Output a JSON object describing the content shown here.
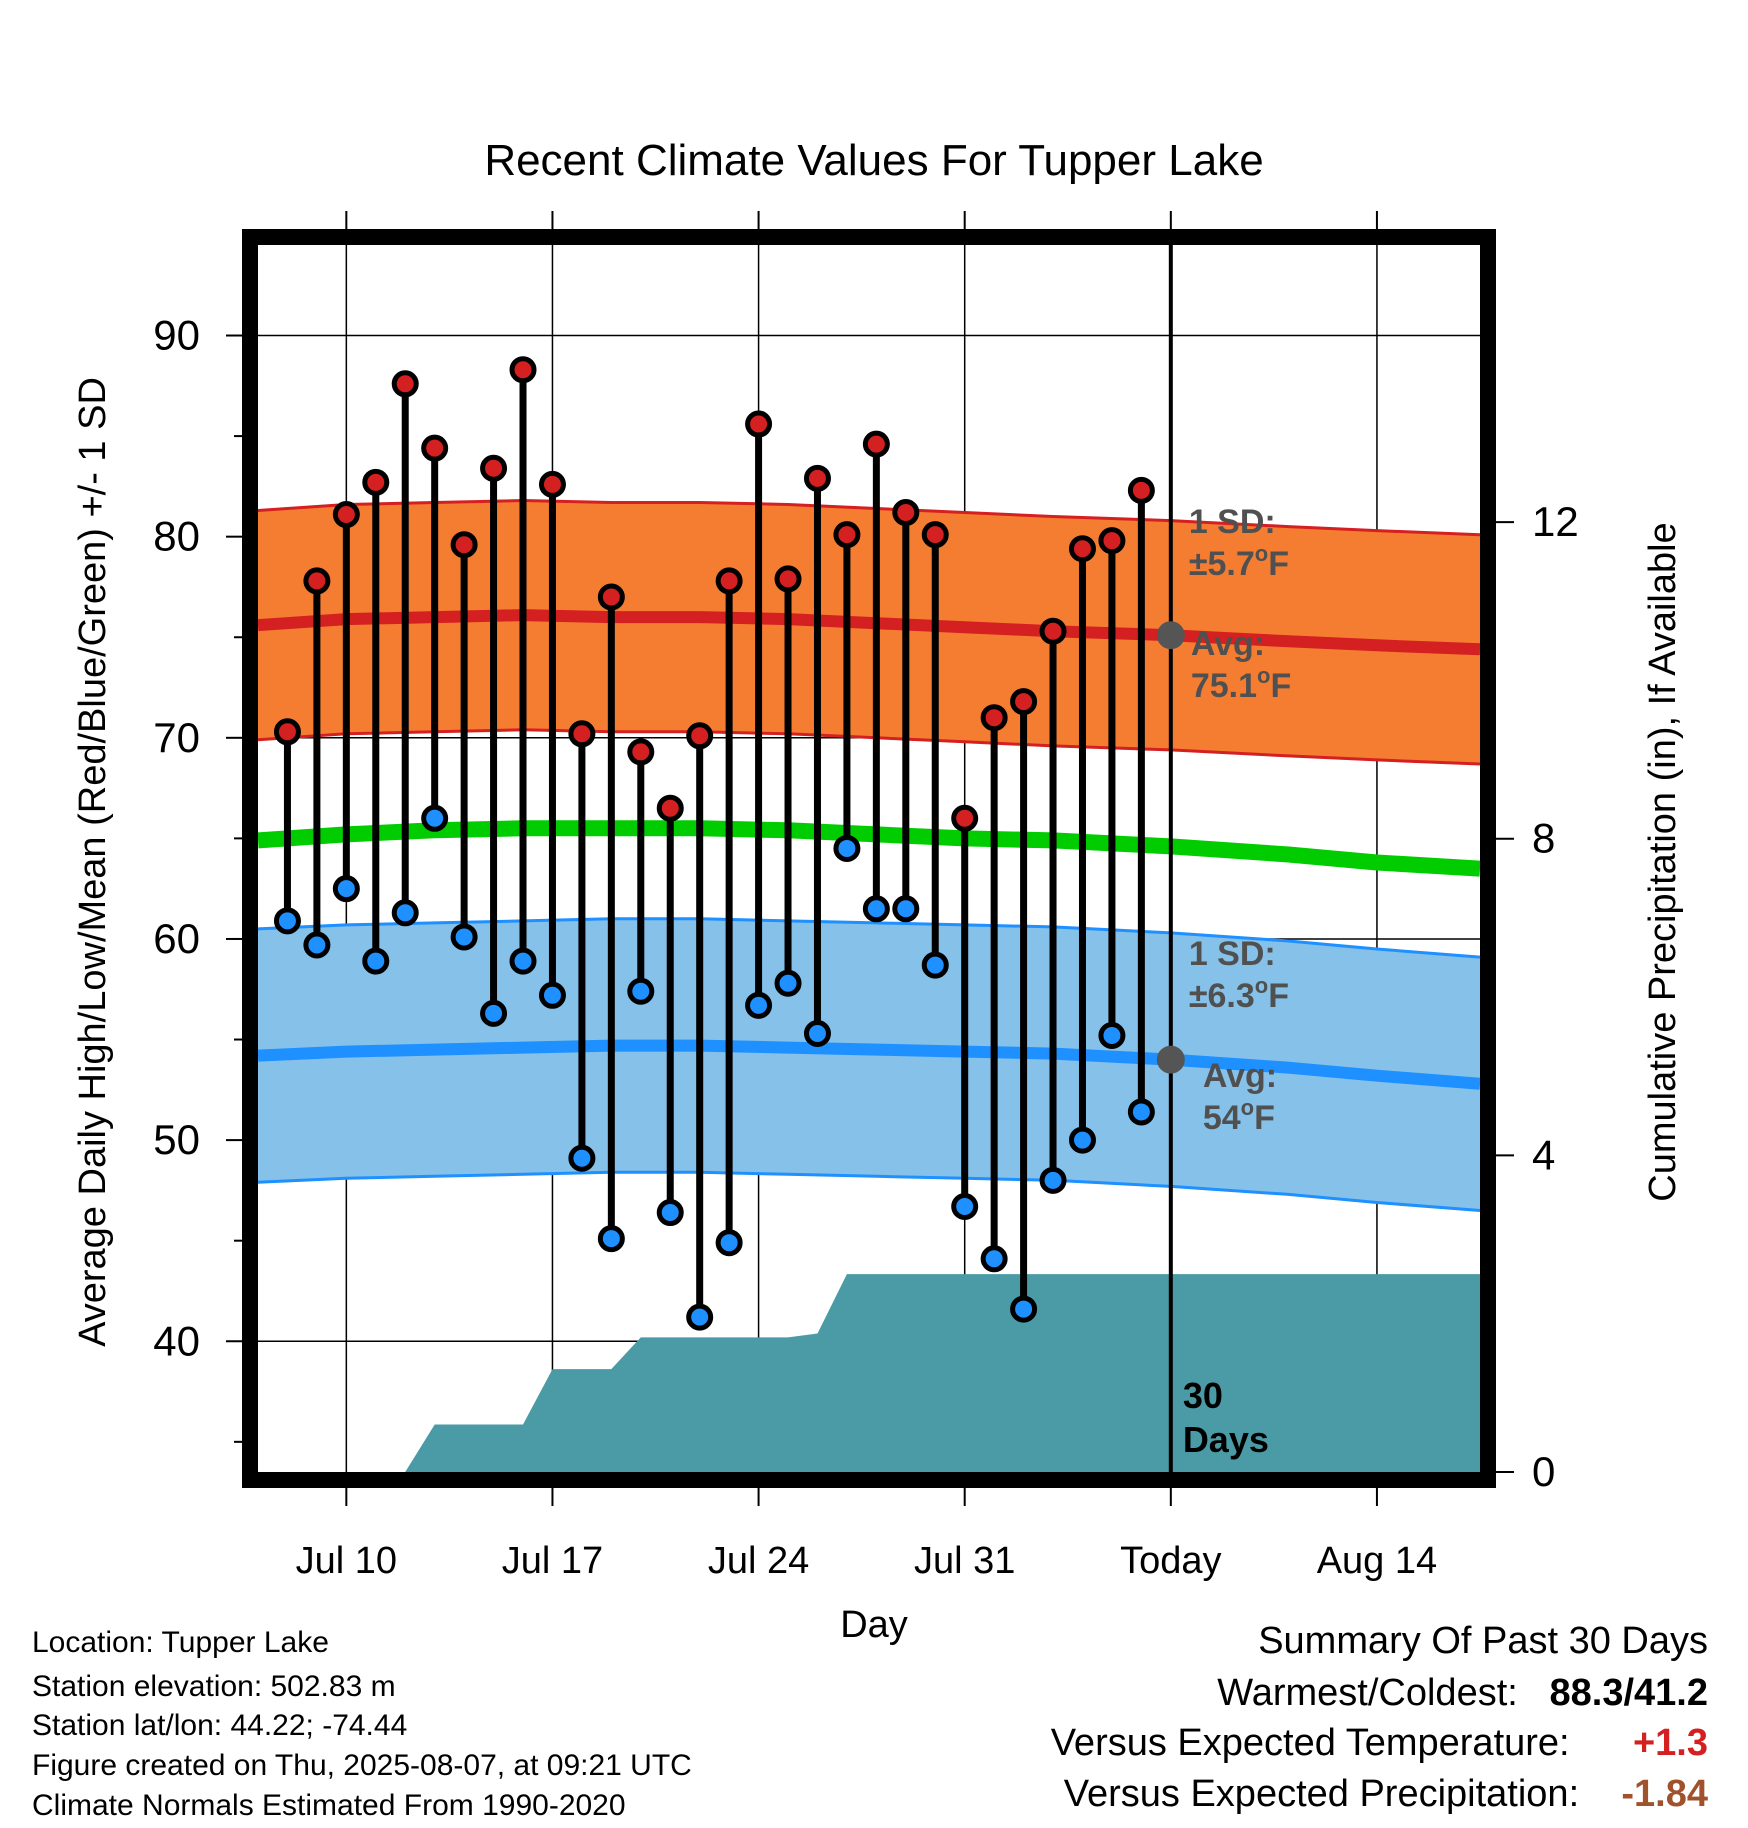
{
  "chart_data": {
    "type": "line",
    "title": "Recent Climate Values For Tupper Lake",
    "xlabel": "Day",
    "ylabel": "Average Daily High/Low/Mean (Red/Blue/Green) +/- 1 SD",
    "y2label": "Cumulative Precipitation (in), If Available",
    "xlim": [
      -3,
      38.5
    ],
    "ylim": [
      33.5,
      94.5
    ],
    "y2lim": [
      0,
      15.5
    ],
    "x_ticks": [
      {
        "x": 0,
        "label": "Jul 10"
      },
      {
        "x": 7,
        "label": "Jul 17"
      },
      {
        "x": 14,
        "label": "Jul 24"
      },
      {
        "x": 21,
        "label": "Jul 31"
      },
      {
        "x": 28,
        "label": "Today"
      },
      {
        "x": 35,
        "label": "Aug 14"
      }
    ],
    "y_ticks": [
      40,
      50,
      60,
      70,
      80,
      90
    ],
    "y2_ticks": [
      0,
      4,
      8,
      12
    ],
    "grid": true,
    "today_x": 28,
    "series": [
      {
        "name": "Daily High",
        "color": "#d42020",
        "x": [
          -2,
          -1,
          0,
          1,
          2,
          3,
          4,
          5,
          6,
          7,
          8,
          9,
          10,
          11,
          12,
          13,
          14,
          15,
          16,
          17,
          18,
          19,
          20,
          21,
          22,
          23,
          24,
          25,
          26,
          27
        ],
        "values": [
          70.3,
          77.8,
          81.1,
          82.7,
          87.6,
          84.4,
          79.6,
          83.4,
          88.3,
          82.6,
          70.2,
          77.0,
          69.3,
          66.5,
          70.1,
          77.8,
          85.6,
          77.9,
          82.9,
          80.1,
          84.6,
          81.2,
          80.1,
          66.0,
          71.0,
          71.8,
          75.3,
          79.4,
          79.8,
          82.3
        ]
      },
      {
        "name": "Daily Low",
        "color": "#1e90ff",
        "x": [
          -2,
          -1,
          0,
          1,
          2,
          3,
          4,
          5,
          6,
          7,
          8,
          9,
          10,
          11,
          12,
          13,
          14,
          15,
          16,
          17,
          18,
          19,
          20,
          21,
          22,
          23,
          24,
          25,
          26,
          27
        ],
        "values": [
          60.9,
          59.7,
          62.5,
          58.9,
          61.3,
          66.0,
          60.1,
          56.3,
          58.9,
          57.2,
          49.1,
          45.1,
          57.4,
          46.4,
          41.2,
          44.9,
          56.7,
          57.8,
          55.3,
          64.5,
          61.5,
          61.5,
          58.7,
          46.7,
          44.1,
          41.6,
          48.0,
          50.0,
          55.2,
          51.4
        ]
      },
      {
        "name": "Normal High",
        "color": "#d42020",
        "x": [
          -3,
          0,
          3,
          6,
          9,
          12,
          15,
          18,
          21,
          24,
          28,
          32,
          35,
          38.5
        ],
        "values": [
          75.6,
          75.9,
          76.0,
          76.1,
          76.0,
          76.0,
          75.9,
          75.7,
          75.5,
          75.3,
          75.1,
          74.8,
          74.6,
          74.4
        ],
        "sd": 5.7
      },
      {
        "name": "Normal Low",
        "color": "#1e90ff",
        "x": [
          -3,
          0,
          3,
          6,
          9,
          12,
          15,
          18,
          21,
          24,
          28,
          32,
          35,
          38.5
        ],
        "values": [
          54.2,
          54.4,
          54.5,
          54.6,
          54.7,
          54.7,
          54.6,
          54.5,
          54.4,
          54.3,
          54.0,
          53.6,
          53.2,
          52.8
        ],
        "sd": 6.3
      },
      {
        "name": "Normal Mean",
        "color": "#00cc00",
        "x": [
          -3,
          0,
          3,
          6,
          9,
          12,
          15,
          18,
          21,
          24,
          28,
          32,
          35,
          38.5
        ],
        "values": [
          64.9,
          65.2,
          65.4,
          65.5,
          65.5,
          65.5,
          65.4,
          65.2,
          65.0,
          64.9,
          64.6,
          64.2,
          63.8,
          63.5
        ]
      }
    ],
    "precipitation": {
      "color": "#4a9ba5",
      "x": [
        -3,
        2,
        3,
        3.1,
        6,
        7,
        7.1,
        9,
        10,
        10.1,
        15,
        16,
        17,
        38.5
      ],
      "values": [
        0,
        0,
        0.6,
        0.6,
        0.6,
        1.3,
        1.3,
        1.3,
        1.7,
        1.7,
        1.7,
        1.75,
        2.5,
        2.5
      ]
    },
    "annotations": {
      "high_sd_label": "1 SD:",
      "high_sd_value": "±5.7",
      "high_avg_label": "Avg:",
      "high_avg_value": "75.1",
      "low_sd_label": "1 SD:",
      "low_sd_value": "±6.3",
      "low_avg_label": "Avg:",
      "low_avg_value": "54",
      "deg_symbol": "o",
      "unit": "F",
      "precip_days_1": "30",
      "precip_days_2": "Days"
    }
  },
  "station": {
    "location": "Location: Tupper Lake",
    "elevation": "Station elevation: 502.83 m",
    "latlon": "Station lat/lon: 44.22; -74.44",
    "created": "Figure created on Thu, 2025-08-07, at 09:21 UTC",
    "normals": "Climate Normals Estimated From 1990-2020"
  },
  "summary": {
    "title": "Summary Of Past 30 Days",
    "warm_cold_label": "Warmest/Coldest:",
    "warm_cold_value": "88.3/41.2",
    "temp_label": "Versus Expected Temperature:",
    "temp_value": "+1.3",
    "temp_color": "#d42020",
    "precip_label": "Versus Expected Precipitation:",
    "precip_value": "-1.84",
    "precip_color": "#a0522d"
  }
}
